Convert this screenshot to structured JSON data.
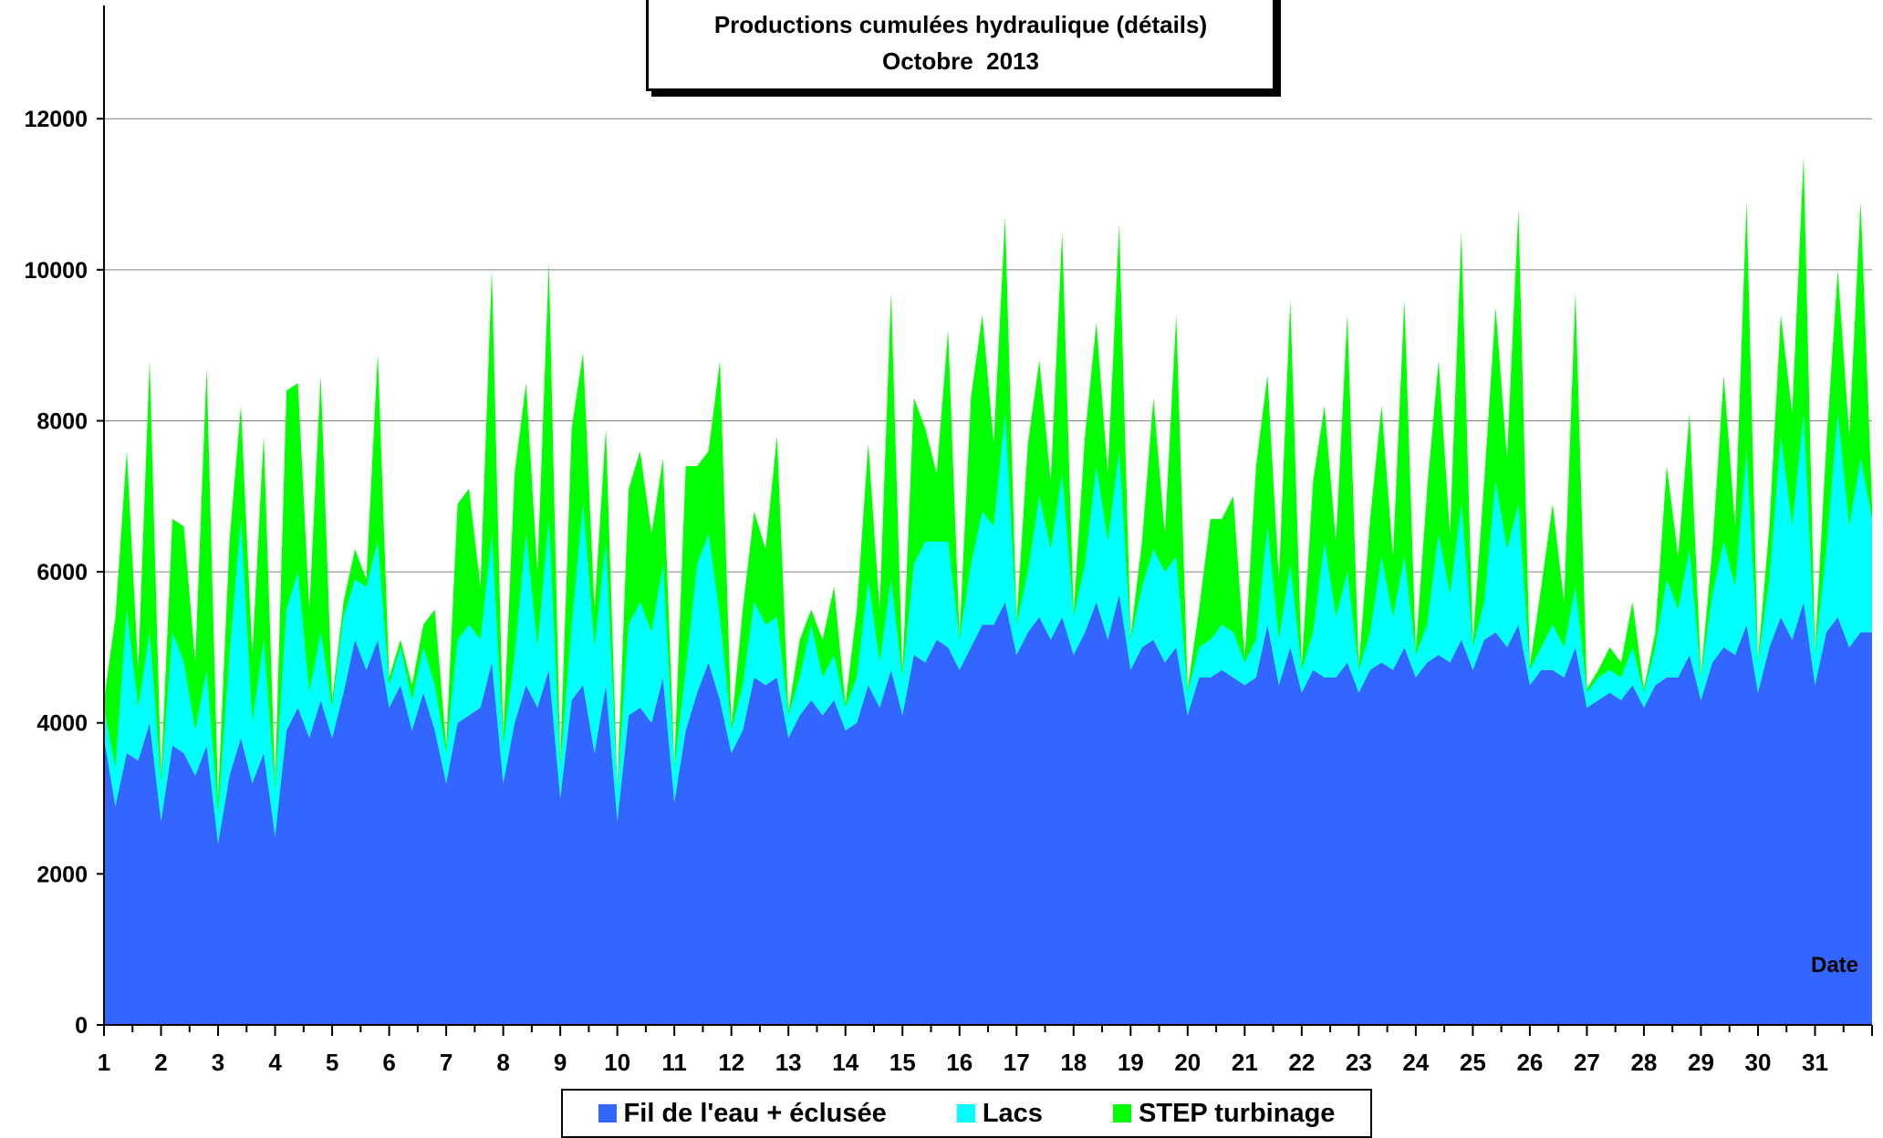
{
  "chart_data": {
    "type": "area",
    "stacked": true,
    "title": "Productions cumulées hydraulique (détails)",
    "subtitle": "Octobre  2013",
    "xlabel": "Date",
    "ylabel": "",
    "ylim": [
      0,
      13500
    ],
    "yticks": [
      0,
      2000,
      4000,
      6000,
      8000,
      10000,
      12000
    ],
    "xlim": [
      1,
      32
    ],
    "xticks": [
      "1",
      "2",
      "3",
      "4",
      "5",
      "6",
      "7",
      "8",
      "9",
      "10",
      "11",
      "12",
      "13",
      "14",
      "15",
      "16",
      "17",
      "18",
      "19",
      "20",
      "21",
      "22",
      "23",
      "24",
      "25",
      "26",
      "27",
      "28",
      "29",
      "30",
      "31"
    ],
    "grid": "horizontal",
    "legend_position": "bottom",
    "series": [
      {
        "name": "Fil de l'eau + éclusée",
        "color": "#3366ff",
        "x": [
          1.0,
          1.2,
          1.4,
          1.6,
          1.8,
          2.0,
          2.2,
          2.4,
          2.6,
          2.8,
          3.0,
          3.2,
          3.4,
          3.6,
          3.8,
          4.0,
          4.2,
          4.4,
          4.6,
          4.8,
          5.0,
          5.2,
          5.4,
          5.6,
          5.8,
          6.0,
          6.2,
          6.4,
          6.6,
          6.8,
          7.0,
          7.2,
          7.4,
          7.6,
          7.8,
          8.0,
          8.2,
          8.4,
          8.6,
          8.8,
          9.0,
          9.2,
          9.4,
          9.6,
          9.8,
          10.0,
          10.2,
          10.4,
          10.6,
          10.8,
          11.0,
          11.2,
          11.4,
          11.6,
          11.8,
          12.0,
          12.2,
          12.4,
          12.6,
          12.8,
          13.0,
          13.2,
          13.4,
          13.6,
          13.8,
          14.0,
          14.2,
          14.4,
          14.6,
          14.8,
          15.0,
          15.2,
          15.4,
          15.6,
          15.8,
          16.0,
          16.2,
          16.4,
          16.6,
          16.8,
          17.0,
          17.2,
          17.4,
          17.6,
          17.8,
          18.0,
          18.2,
          18.4,
          18.6,
          18.8,
          19.0,
          19.2,
          19.4,
          19.6,
          19.8,
          20.0,
          20.2,
          20.4,
          20.6,
          20.8,
          21.0,
          21.2,
          21.4,
          21.6,
          21.8,
          22.0,
          22.2,
          22.4,
          22.6,
          22.8,
          23.0,
          23.2,
          23.4,
          23.6,
          23.8,
          24.0,
          24.2,
          24.4,
          24.6,
          24.8,
          25.0,
          25.2,
          25.4,
          25.6,
          25.8,
          26.0,
          26.2,
          26.4,
          26.6,
          26.8,
          27.0,
          27.2,
          27.4,
          27.6,
          27.8,
          28.0,
          28.2,
          28.4,
          28.6,
          28.8,
          29.0,
          29.2,
          29.4,
          29.6,
          29.8,
          30.0,
          30.2,
          30.4,
          30.6,
          30.8,
          31.0,
          31.2,
          31.4,
          31.6,
          31.8,
          32.0
        ],
        "values": [
          3800,
          2900,
          3600,
          3500,
          4000,
          2700,
          3700,
          3600,
          3300,
          3700,
          2400,
          3300,
          3800,
          3200,
          3600,
          2500,
          3900,
          4200,
          3800,
          4300,
          3800,
          4400,
          5100,
          4700,
          5100,
          4200,
          4500,
          3900,
          4400,
          3900,
          3200,
          4000,
          4100,
          4200,
          4800,
          3200,
          4000,
          4500,
          4200,
          4700,
          3000,
          4300,
          4500,
          3600,
          4500,
          2700,
          4100,
          4200,
          4000,
          4600,
          2950,
          3900,
          4400,
          4800,
          4300,
          3600,
          3900,
          4600,
          4500,
          4600,
          3800,
          4100,
          4300,
          4100,
          4300,
          3900,
          4000,
          4500,
          4200,
          4700,
          4100,
          4900,
          4800,
          5100,
          5000,
          4700,
          5000,
          5300,
          5300,
          5600,
          4900,
          5200,
          5400,
          5100,
          5400,
          4900,
          5200,
          5600,
          5100,
          5700,
          4700,
          5000,
          5100,
          4800,
          5000,
          4100,
          4600,
          4600,
          4700,
          4600,
          4500,
          4600,
          5300,
          4500,
          5000,
          4400,
          4700,
          4600,
          4600,
          4800,
          4400,
          4700,
          4800,
          4700,
          5000,
          4600,
          4800,
          4900,
          4800,
          5100,
          4700,
          5100,
          5200,
          5000,
          5300,
          4500,
          4700,
          4700,
          4600,
          5000,
          4200,
          4300,
          4400,
          4300,
          4500,
          4200,
          4500,
          4600,
          4600,
          4900,
          4300,
          4800,
          5000,
          4900,
          5300,
          4400,
          5000,
          5400,
          5100,
          5600,
          4500,
          5200,
          5400,
          5000,
          5200,
          5200
        ]
      },
      {
        "name": "Lacs",
        "color": "#00ffff",
        "x": [
          1.0,
          1.2,
          1.4,
          1.6,
          1.8,
          2.0,
          2.2,
          2.4,
          2.6,
          2.8,
          3.0,
          3.2,
          3.4,
          3.6,
          3.8,
          4.0,
          4.2,
          4.4,
          4.6,
          4.8,
          5.0,
          5.2,
          5.4,
          5.6,
          5.8,
          6.0,
          6.2,
          6.4,
          6.6,
          6.8,
          7.0,
          7.2,
          7.4,
          7.6,
          7.8,
          8.0,
          8.2,
          8.4,
          8.6,
          8.8,
          9.0,
          9.2,
          9.4,
          9.6,
          9.8,
          10.0,
          10.2,
          10.4,
          10.6,
          10.8,
          11.0,
          11.2,
          11.4,
          11.6,
          11.8,
          12.0,
          12.2,
          12.4,
          12.6,
          12.8,
          13.0,
          13.2,
          13.4,
          13.6,
          13.8,
          14.0,
          14.2,
          14.4,
          14.6,
          14.8,
          15.0,
          15.2,
          15.4,
          15.6,
          15.8,
          16.0,
          16.2,
          16.4,
          16.6,
          16.8,
          17.0,
          17.2,
          17.4,
          17.6,
          17.8,
          18.0,
          18.2,
          18.4,
          18.6,
          18.8,
          19.0,
          19.2,
          19.4,
          19.6,
          19.8,
          20.0,
          20.2,
          20.4,
          20.6,
          20.8,
          21.0,
          21.2,
          21.4,
          21.6,
          21.8,
          22.0,
          22.2,
          22.4,
          22.6,
          22.8,
          23.0,
          23.2,
          23.4,
          23.6,
          23.8,
          24.0,
          24.2,
          24.4,
          24.6,
          24.8,
          25.0,
          25.2,
          25.4,
          25.6,
          25.8,
          26.0,
          26.2,
          26.4,
          26.6,
          26.8,
          27.0,
          27.2,
          27.4,
          27.6,
          27.8,
          28.0,
          28.2,
          28.4,
          28.6,
          28.8,
          29.0,
          29.2,
          29.4,
          29.6,
          29.8,
          30.0,
          30.2,
          30.4,
          30.6,
          30.8,
          31.0,
          31.2,
          31.4,
          31.6,
          31.8,
          32.0
        ],
        "values": [
          400,
          500,
          1900,
          700,
          1200,
          500,
          1500,
          1200,
          600,
          1000,
          400,
          1600,
          2900,
          800,
          1500,
          600,
          1600,
          1800,
          600,
          900,
          400,
          1000,
          800,
          1100,
          1300,
          300,
          500,
          400,
          600,
          600,
          400,
          1100,
          1200,
          900,
          1700,
          500,
          900,
          2000,
          800,
          2000,
          400,
          1000,
          2400,
          1400,
          1900,
          400,
          1200,
          1400,
          1200,
          1500,
          450,
          800,
          1700,
          1700,
          1100,
          300,
          600,
          1000,
          800,
          800,
          300,
          500,
          1000,
          500,
          600,
          300,
          600,
          1400,
          600,
          1200,
          500,
          1200,
          1600,
          1300,
          1400,
          400,
          1100,
          1500,
          1300,
          2500,
          400,
          800,
          1600,
          1200,
          1900,
          500,
          900,
          1800,
          1300,
          1900,
          400,
          800,
          1200,
          1200,
          1200,
          300,
          400,
          500,
          600,
          600,
          300,
          500,
          1300,
          600,
          1100,
          300,
          500,
          1800,
          800,
          1200,
          300,
          500,
          1400,
          700,
          1200,
          300,
          500,
          1600,
          900,
          1800,
          300,
          500,
          2000,
          1300,
          1600,
          200,
          300,
          600,
          400,
          800,
          200,
          300,
          300,
          300,
          500,
          200,
          500,
          1300,
          900,
          1400,
          300,
          900,
          1400,
          900,
          2300,
          400,
          900,
          2400,
          1500,
          2500,
          400,
          1100,
          2700,
          1600,
          2300,
          1500
        ]
      },
      {
        "name": "STEP turbinage",
        "color": "#00ff00",
        "x": [
          1.0,
          1.2,
          1.4,
          1.6,
          1.8,
          2.0,
          2.2,
          2.4,
          2.6,
          2.8,
          3.0,
          3.2,
          3.4,
          3.6,
          3.8,
          4.0,
          4.2,
          4.4,
          4.6,
          4.8,
          5.0,
          5.2,
          5.4,
          5.6,
          5.8,
          6.0,
          6.2,
          6.4,
          6.6,
          6.8,
          7.0,
          7.2,
          7.4,
          7.6,
          7.8,
          8.0,
          8.2,
          8.4,
          8.6,
          8.8,
          9.0,
          9.2,
          9.4,
          9.6,
          9.8,
          10.0,
          10.2,
          10.4,
          10.6,
          10.8,
          11.0,
          11.2,
          11.4,
          11.6,
          11.8,
          12.0,
          12.2,
          12.4,
          12.6,
          12.8,
          13.0,
          13.2,
          13.4,
          13.6,
          13.8,
          14.0,
          14.2,
          14.4,
          14.6,
          14.8,
          15.0,
          15.2,
          15.4,
          15.6,
          15.8,
          16.0,
          16.2,
          16.4,
          16.6,
          16.8,
          17.0,
          17.2,
          17.4,
          17.6,
          17.8,
          18.0,
          18.2,
          18.4,
          18.6,
          18.8,
          19.0,
          19.2,
          19.4,
          19.6,
          19.8,
          20.0,
          20.2,
          20.4,
          20.6,
          20.8,
          21.0,
          21.2,
          21.4,
          21.6,
          21.8,
          22.0,
          22.2,
          22.4,
          22.6,
          22.8,
          23.0,
          23.2,
          23.4,
          23.6,
          23.8,
          24.0,
          24.2,
          24.4,
          24.6,
          24.8,
          25.0,
          25.2,
          25.4,
          25.6,
          25.8,
          26.0,
          26.2,
          26.4,
          26.6,
          26.8,
          27.0,
          27.2,
          27.4,
          27.6,
          27.8,
          28.0,
          28.2,
          28.4,
          28.6,
          28.8,
          29.0,
          29.2,
          29.4,
          29.6,
          29.8,
          30.0,
          30.2,
          30.4,
          30.6,
          30.8,
          31.0,
          31.2,
          31.4,
          31.6,
          31.8,
          32.0
        ],
        "values": [
          100,
          2000,
          2100,
          500,
          3600,
          100,
          1500,
          1800,
          900,
          4000,
          200,
          1500,
          1500,
          900,
          2700,
          100,
          2900,
          2500,
          1100,
          3400,
          100,
          200,
          400,
          100,
          2500,
          100,
          100,
          200,
          300,
          1000,
          100,
          1800,
          1800,
          700,
          3500,
          100,
          2400,
          2000,
          1000,
          3400,
          100,
          2600,
          2000,
          500,
          1500,
          50,
          1800,
          2000,
          1300,
          1400,
          50,
          2700,
          1300,
          1100,
          3400,
          50,
          1000,
          1200,
          1000,
          2400,
          50,
          500,
          200,
          500,
          900,
          50,
          900,
          1800,
          700,
          3800,
          50,
          2200,
          1500,
          900,
          2800,
          50,
          2200,
          2600,
          1100,
          2600,
          50,
          1700,
          1800,
          900,
          3200,
          50,
          1700,
          1900,
          900,
          3000,
          50,
          600,
          2000,
          500,
          3200,
          50,
          500,
          1600,
          1400,
          1800,
          50,
          2300,
          2000,
          800,
          3500,
          50,
          2000,
          1800,
          1000,
          3400,
          50,
          1500,
          2000,
          800,
          3400,
          50,
          1800,
          2300,
          800,
          3600,
          50,
          1600,
          2300,
          1200,
          3900,
          50,
          800,
          1600,
          600,
          3900,
          50,
          100,
          300,
          200,
          600,
          50,
          200,
          1500,
          700,
          1800,
          50,
          600,
          2200,
          800,
          3300,
          50,
          700,
          1600,
          1500,
          3400,
          50,
          1400,
          1900,
          1200,
          3400,
          200
        ]
      }
    ]
  }
}
